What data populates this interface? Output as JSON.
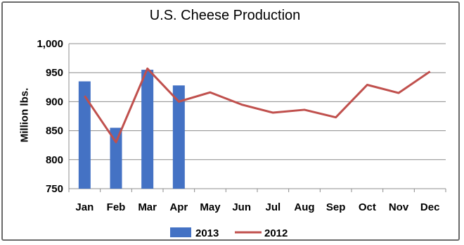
{
  "colors": {
    "bar_2013": "#4472C4",
    "line_2012": "#C0504D",
    "grid": "#8c8c8c",
    "axis": "#8c8c8c",
    "text": "#000000"
  },
  "chart_data": {
    "type": "bar",
    "title": "U.S. Cheese Production",
    "xlabel": "",
    "ylabel": "Million lbs.",
    "ylim": [
      750,
      1000
    ],
    "yticks": [
      "750",
      "800",
      "850",
      "900",
      "950",
      "1,000"
    ],
    "yticks_values": [
      750,
      800,
      850,
      900,
      950,
      1000
    ],
    "grid": true,
    "legend_position": "bottom",
    "categories": [
      "Jan",
      "Feb",
      "Mar",
      "Apr",
      "May",
      "Jun",
      "Jul",
      "Aug",
      "Sep",
      "Oct",
      "Nov",
      "Dec"
    ],
    "series": [
      {
        "name": "2013",
        "type": "bar",
        "values": [
          935,
          855,
          955,
          928,
          null,
          null,
          null,
          null,
          null,
          null,
          null,
          null
        ]
      },
      {
        "name": "2012",
        "type": "line",
        "values": [
          910,
          830,
          957,
          900,
          916,
          895,
          881,
          886,
          873,
          929,
          915,
          952
        ]
      }
    ]
  }
}
